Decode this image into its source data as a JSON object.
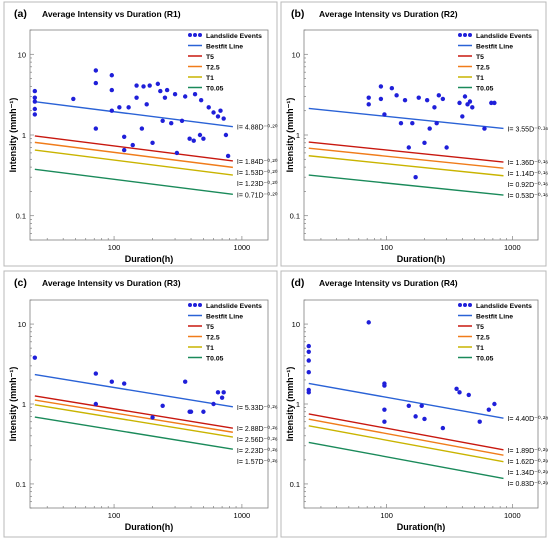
{
  "colors": {
    "points": "#1f1fd9",
    "bestfit": "#2a62d6",
    "T5": "#c8180f",
    "T2.5": "#f07c1a",
    "T1": "#c9b400",
    "T0.05": "#1a8a5a",
    "axis": "#808080",
    "text": "#000000"
  },
  "chart_data": [
    {
      "type": "scatter",
      "panel_label": "(a)",
      "title": "Average Intensity vs Duration (R1)",
      "xlabel": "Duration(h)",
      "ylabel": "Intensity (mmh⁻¹)",
      "xscale": "log",
      "yscale": "log",
      "xlim": [
        22,
        1600
      ],
      "ylim": [
        0.05,
        20
      ],
      "xticks": [
        100,
        1000
      ],
      "xtick_labels": [
        "100",
        "1000"
      ],
      "yticks": [
        0.1,
        1,
        10
      ],
      "ytick_labels": [
        "0.1",
        "1",
        "10"
      ],
      "legend_position": "top-right",
      "legend": [
        "Landslide Events",
        "Bestfit Line",
        "T5",
        "T2.5",
        "T1",
        "T0.05"
      ],
      "points": {
        "name": "Landslide Events",
        "x": [
          24,
          24,
          24,
          24,
          24,
          48,
          72,
          72,
          72,
          96,
          96,
          96,
          110,
          120,
          120,
          130,
          140,
          150,
          150,
          165,
          170,
          180,
          190,
          200,
          220,
          230,
          240,
          250,
          260,
          280,
          300,
          310,
          340,
          360,
          390,
          420,
          430,
          470,
          480,
          500,
          550,
          600,
          650,
          680,
          720,
          750,
          780
        ],
        "y": [
          3.5,
          2.9,
          2.1,
          1.8,
          2.6,
          2.8,
          6.3,
          4.4,
          1.2,
          5.5,
          3.6,
          2.0,
          2.2,
          0.95,
          0.65,
          2.2,
          0.75,
          4.1,
          2.9,
          1.2,
          4.0,
          2.4,
          4.1,
          0.8,
          4.3,
          3.5,
          1.5,
          2.9,
          3.6,
          1.4,
          3.2,
          0.6,
          1.5,
          3.0,
          0.9,
          0.85,
          3.2,
          1.0,
          2.7,
          0.9,
          2.2,
          1.9,
          1.7,
          2.0,
          1.6,
          1.0,
          0.55
        ]
      },
      "series": [
        {
          "name": "Bestfit Line",
          "key": "bestfit",
          "a": 4.88,
          "b": -0.2,
          "label": "I= 4.88D⁻⁰·²⁰"
        },
        {
          "name": "T5",
          "key": "T5",
          "a": 1.84,
          "b": -0.2,
          "label": "I= 1.84D⁻⁰·²⁰"
        },
        {
          "name": "T2.5",
          "key": "T2.5",
          "a": 1.53,
          "b": -0.2,
          "label": "I= 1.53D⁻⁰·²⁰"
        },
        {
          "name": "T1",
          "key": "T1",
          "a": 1.23,
          "b": -0.2,
          "label": "I= 1.23D⁻⁰·²⁰"
        },
        {
          "name": "T0.05",
          "key": "T0.05",
          "a": 0.71,
          "b": -0.2,
          "label": "I= 0.71D⁻⁰·²⁰"
        }
      ]
    },
    {
      "type": "scatter",
      "panel_label": "(b)",
      "title": "Average Intensity vs Duration (R2)",
      "xlabel": "Duration(h)",
      "ylabel": "Intensity (mmh⁻¹)",
      "xscale": "log",
      "yscale": "log",
      "xlim": [
        22,
        1600
      ],
      "ylim": [
        0.05,
        20
      ],
      "xticks": [
        100,
        1000
      ],
      "xtick_labels": [
        "100",
        "1000"
      ],
      "yticks": [
        0.1,
        1,
        10
      ],
      "ytick_labels": [
        "0.1",
        "1",
        "10"
      ],
      "legend_position": "top-right",
      "legend": [
        "Landslide Events",
        "Bestfit Line",
        "T5",
        "T2.5",
        "T1",
        "T0.05"
      ],
      "points": {
        "name": "Landslide Events",
        "x": [
          72,
          72,
          90,
          90,
          96,
          110,
          120,
          130,
          140,
          150,
          160,
          170,
          180,
          200,
          210,
          220,
          240,
          250,
          260,
          280,
          300,
          380,
          400,
          420,
          440,
          460,
          480,
          600,
          680,
          720
        ],
        "y": [
          2.9,
          2.4,
          4.0,
          2.8,
          1.8,
          3.8,
          3.1,
          1.4,
          2.7,
          0.7,
          1.4,
          0.3,
          2.9,
          0.8,
          2.7,
          1.2,
          2.2,
          1.4,
          3.1,
          2.8,
          0.7,
          2.5,
          1.7,
          3.0,
          2.4,
          2.6,
          2.2,
          1.2,
          2.5,
          2.5
        ]
      },
      "series": [
        {
          "name": "Bestfit Line",
          "key": "bestfit",
          "a": 3.55,
          "b": -0.16,
          "label": "I= 3.55D⁻⁰·¹⁶"
        },
        {
          "name": "T5",
          "key": "T5",
          "a": 1.36,
          "b": -0.16,
          "label": "I= 1.36D⁻⁰·¹⁶"
        },
        {
          "name": "T2.5",
          "key": "T2.5",
          "a": 1.14,
          "b": -0.16,
          "label": "I= 1.14D⁻⁰·¹⁶"
        },
        {
          "name": "T1",
          "key": "T1",
          "a": 0.92,
          "b": -0.16,
          "label": "I= 0.92D⁻⁰·¹⁶"
        },
        {
          "name": "T0.05",
          "key": "T0.05",
          "a": 0.53,
          "b": -0.16,
          "label": "I= 0.53D⁻⁰·¹⁶"
        }
      ]
    },
    {
      "type": "scatter",
      "panel_label": "(c)",
      "title": "Average Intensity vs Duration (R3)",
      "xlabel": "Duration(h)",
      "ylabel": "Intensity (mmh⁻¹)",
      "xscale": "log",
      "yscale": "log",
      "xlim": [
        22,
        1600
      ],
      "ylim": [
        0.05,
        20
      ],
      "xticks": [
        100,
        1000
      ],
      "xtick_labels": [
        "100",
        "1000"
      ],
      "yticks": [
        0.1,
        1,
        10
      ],
      "ytick_labels": [
        "0.1",
        "1",
        "10"
      ],
      "legend_position": "top-right",
      "legend": [
        "Landslide Events",
        "Bestfit Line",
        "T5",
        "T2.5",
        "T1",
        "T0.05"
      ],
      "points": {
        "name": "Landslide Events",
        "x": [
          24,
          72,
          72,
          96,
          120,
          200,
          240,
          360,
          390,
          400,
          500,
          600,
          650,
          700,
          720
        ],
        "y": [
          3.8,
          2.4,
          1.0,
          1.9,
          1.8,
          0.68,
          0.95,
          1.9,
          0.8,
          0.8,
          0.8,
          1.0,
          1.4,
          1.2,
          1.4
        ]
      },
      "series": [
        {
          "name": "Bestfit Line",
          "key": "bestfit",
          "a": 5.33,
          "b": -0.26,
          "label": "I= 5.33D⁻⁰·²⁶"
        },
        {
          "name": "T5",
          "key": "T5",
          "a": 2.88,
          "b": -0.26,
          "label": "I= 2.88D⁻⁰·²⁶"
        },
        {
          "name": "T2.5",
          "key": "T2.5",
          "a": 2.56,
          "b": -0.26,
          "label": "I= 2.56D⁻⁰·²⁶"
        },
        {
          "name": "T1",
          "key": "T1",
          "a": 2.23,
          "b": -0.26,
          "label": "I= 2.23D⁻⁰·²⁶"
        },
        {
          "name": "T0.05",
          "key": "T0.05",
          "a": 1.57,
          "b": -0.26,
          "label": "I= 1.57D⁻⁰·²⁶"
        }
      ]
    },
    {
      "type": "scatter",
      "panel_label": "(d)",
      "title": "Average Intensity vs Duration (R4)",
      "xlabel": "Duration(h)",
      "ylabel": "Intensity (mmh⁻¹)",
      "xscale": "log",
      "yscale": "log",
      "xlim": [
        22,
        1600
      ],
      "ylim": [
        0.05,
        20
      ],
      "xticks": [
        100,
        1000
      ],
      "xtick_labels": [
        "100",
        "1000"
      ],
      "yticks": [
        0.1,
        1,
        10
      ],
      "ytick_labels": [
        "0.1",
        "1",
        "10"
      ],
      "legend_position": "top-right",
      "legend": [
        "Landslide Events",
        "Bestfit Line",
        "T5",
        "T2.5",
        "T1",
        "T0.05"
      ],
      "points": {
        "name": "Landslide Events",
        "x": [
          24,
          24,
          24,
          24,
          24,
          24,
          72,
          96,
          96,
          96,
          96,
          150,
          170,
          190,
          200,
          280,
          360,
          380,
          450,
          550,
          650,
          720
        ],
        "y": [
          5.3,
          4.5,
          3.5,
          2.5,
          1.5,
          1.4,
          10.5,
          1.8,
          1.7,
          0.85,
          0.6,
          0.95,
          0.7,
          0.95,
          0.65,
          0.5,
          1.55,
          1.4,
          1.3,
          0.6,
          0.85,
          1.0
        ]
      },
      "series": [
        {
          "name": "Bestfit Line",
          "key": "bestfit",
          "a": 4.4,
          "b": -0.28,
          "label": "I= 4.40D⁻⁰·²⁸"
        },
        {
          "name": "T5",
          "key": "T5",
          "a": 1.89,
          "b": -0.29,
          "label": "I= 1.89D⁻⁰·²⁹"
        },
        {
          "name": "T2.5",
          "key": "T2.5",
          "a": 1.62,
          "b": -0.29,
          "label": "I= 1.62D⁻⁰·²⁹"
        },
        {
          "name": "T1",
          "key": "T1",
          "a": 1.34,
          "b": -0.29,
          "label": "I= 1.34D⁻⁰·²⁹"
        },
        {
          "name": "T0.05",
          "key": "T0.05",
          "a": 0.83,
          "b": -0.29,
          "label": "I= 0.83D⁻⁰·²⁹"
        }
      ]
    }
  ]
}
